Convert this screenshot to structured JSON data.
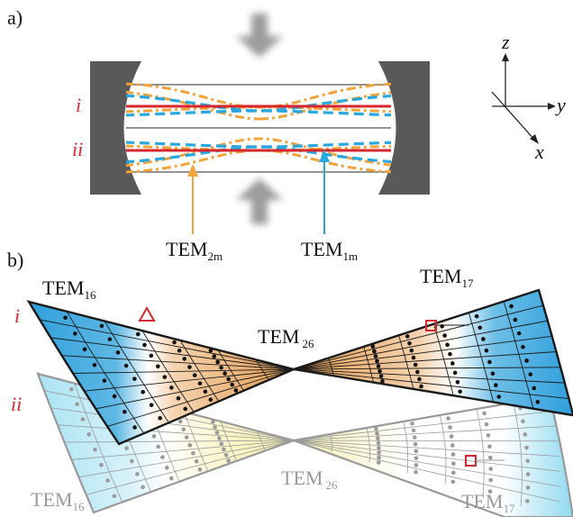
{
  "panel_a": {
    "label": "a)",
    "mode_i": "i",
    "mode_ii": "ii",
    "axes": {
      "z": "z",
      "y": "y",
      "x": "x"
    },
    "arrow_label_left": {
      "base": "TEM",
      "sub": "2m"
    },
    "arrow_label_right": {
      "base": "TEM",
      "sub": "1m"
    }
  },
  "panel_b": {
    "label": "b)",
    "mode_i": "i",
    "mode_ii": "ii",
    "upper_left": {
      "base": "TEM",
      "sub": "16"
    },
    "upper_right": {
      "base": "TEM",
      "sub": "17"
    },
    "upper_center": {
      "base": "TEM",
      "sub": "26"
    },
    "lower_left": {
      "base": "TEM",
      "sub": "16"
    },
    "lower_right": {
      "base": "TEM",
      "sub": "17"
    },
    "lower_center": {
      "base": "TEM",
      "sub": "26"
    }
  },
  "colors": {
    "mirror": "#595959",
    "red_line": "#d7262e",
    "blue_dash": "#29a8e0",
    "orange_dashdot": "#f2a43a",
    "blue_fill": "#3aa6dc",
    "orange_fill": "#e8a65c",
    "cyan_fill": "#a9e4f4",
    "yellow_fill": "#f6f0b8",
    "marker_red": "#d7262e",
    "label_grey": "#9a9a9a"
  }
}
